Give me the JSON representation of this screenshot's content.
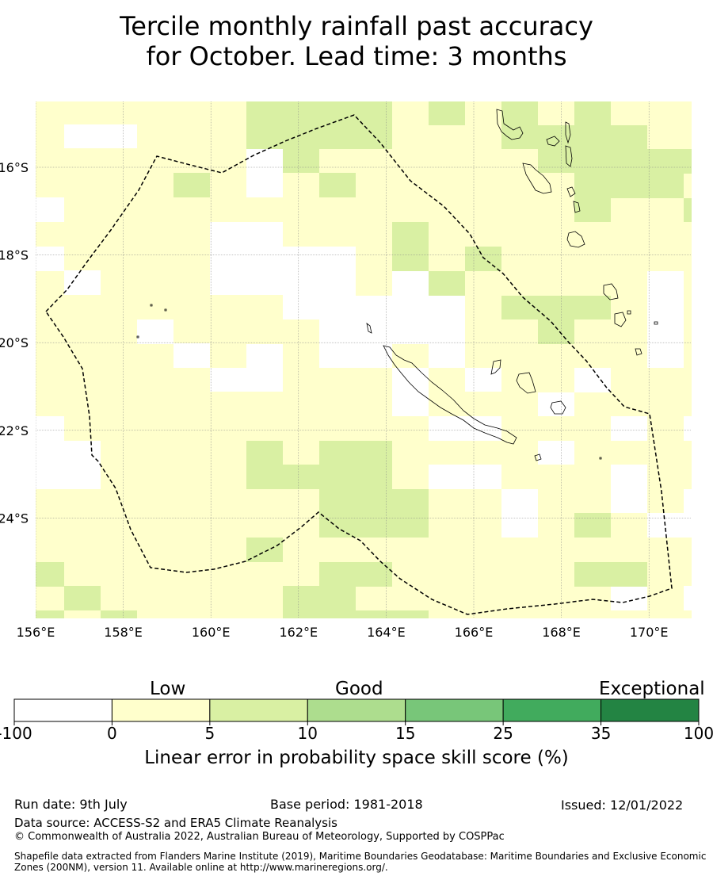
{
  "title": {
    "line1": "Tercile monthly rainfall past accuracy",
    "line2": "for October. Lead time: 3 months"
  },
  "map": {
    "lon_range": [
      156,
      171
    ],
    "lat_range": [
      -26.3,
      -14.5
    ],
    "lon_ticks": [
      "156°E",
      "158°E",
      "160°E",
      "162°E",
      "164°E",
      "166°E",
      "168°E",
      "170°E"
    ],
    "lat_ticks": [
      "16°S",
      "18°S",
      "20°S",
      "22°S",
      "24°S"
    ],
    "gridlines": true,
    "boundary_line": "dashed",
    "zone_colors": [
      "#ffffff",
      "#ffffcc",
      "#d9f0a3",
      "#addd8e",
      "#78c679",
      "#41ab5d",
      "#238443"
    ]
  },
  "colorbar": {
    "category_labels": [
      "Low",
      "Good",
      "Exceptional"
    ],
    "bounds": [
      "-100",
      "0",
      "5",
      "10",
      "15",
      "25",
      "35",
      "100"
    ],
    "colors": [
      "#ffffff",
      "#ffffcc",
      "#d9f0a3",
      "#addd8e",
      "#78c679",
      "#41ab5d",
      "#238443"
    ],
    "title": "Linear error in probability space skill score (%)"
  },
  "footer": {
    "run_date": "Run date: 9th July",
    "base_period": "Base period: 1981-2018",
    "issued": "Issued: 12/01/2022",
    "data_source": "Data source: ACCESS-S2 and ERA5 Climate Reanalysis",
    "copyright": "© Commonwealth of Australia 2022, Australian Bureau of Meteorology, Supported by COSPPac",
    "shapefile": "Shapefile data extracted from Flanders Marine Institute (2019), Maritime Boundaries Geodatabase: Maritime Boundaries and Exclusive Economic Zones (200NM), version 11. Available online at http://www.marineregions.org/."
  }
}
